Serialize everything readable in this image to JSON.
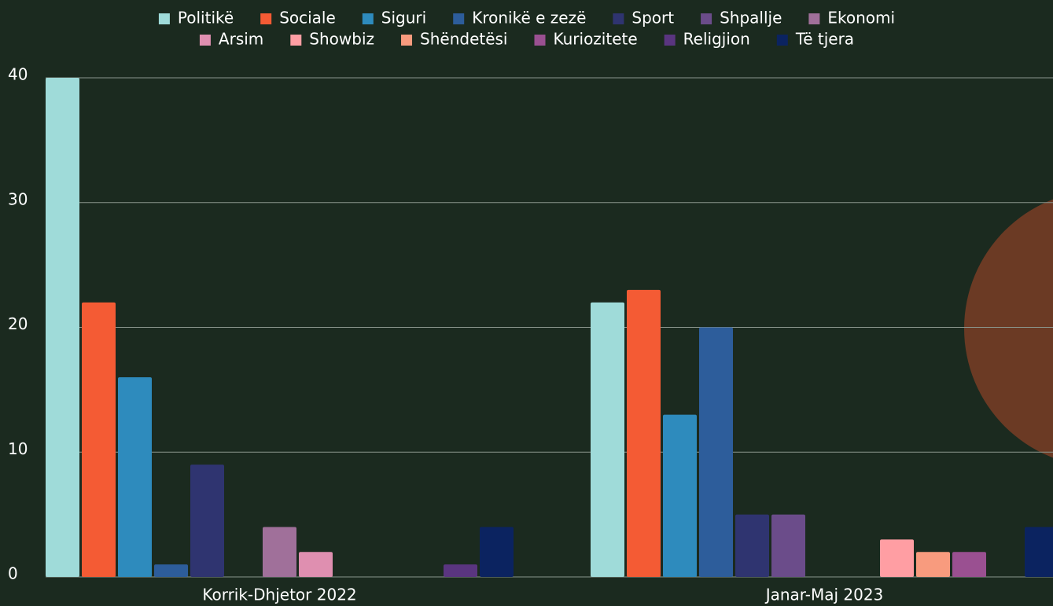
{
  "chart_data": {
    "type": "bar",
    "categories": [
      "Korrik-Dhjetor 2022",
      "Janar-Maj 2023"
    ],
    "ylim": [
      0,
      40
    ],
    "yticks": [
      0,
      10,
      20,
      30,
      40
    ],
    "grid": true,
    "series": [
      {
        "name": "Politikë",
        "color": "#9fdbd9",
        "values": [
          40,
          22
        ]
      },
      {
        "name": "Sociale",
        "color": "#f45b34",
        "values": [
          22,
          23
        ]
      },
      {
        "name": "Siguri",
        "color": "#2e8bbd",
        "values": [
          16,
          13
        ]
      },
      {
        "name": "Kronikë e zezë",
        "color": "#2d5d9b",
        "values": [
          1,
          20
        ]
      },
      {
        "name": "Sport",
        "color": "#2f3470",
        "values": [
          9,
          5
        ]
      },
      {
        "name": "Shpallje",
        "color": "#6b4c8a",
        "values": [
          0,
          5
        ]
      },
      {
        "name": "Ekonomi",
        "color": "#a0709a",
        "values": [
          4,
          0
        ]
      },
      {
        "name": "Arsim",
        "color": "#df8fb0",
        "values": [
          2,
          0
        ]
      },
      {
        "name": "Showbiz",
        "color": "#ff9ea3",
        "values": [
          0,
          3
        ]
      },
      {
        "name": "Shëndetësi",
        "color": "#f89b7e",
        "values": [
          0,
          2
        ]
      },
      {
        "name": "Kuriozitete",
        "color": "#9a5091",
        "values": [
          0,
          2
        ]
      },
      {
        "name": "Religjion",
        "color": "#5a3580",
        "values": [
          1,
          0
        ]
      },
      {
        "name": "Të tjera",
        "color": "#0b2360",
        "values": [
          4,
          4
        ]
      }
    ]
  }
}
